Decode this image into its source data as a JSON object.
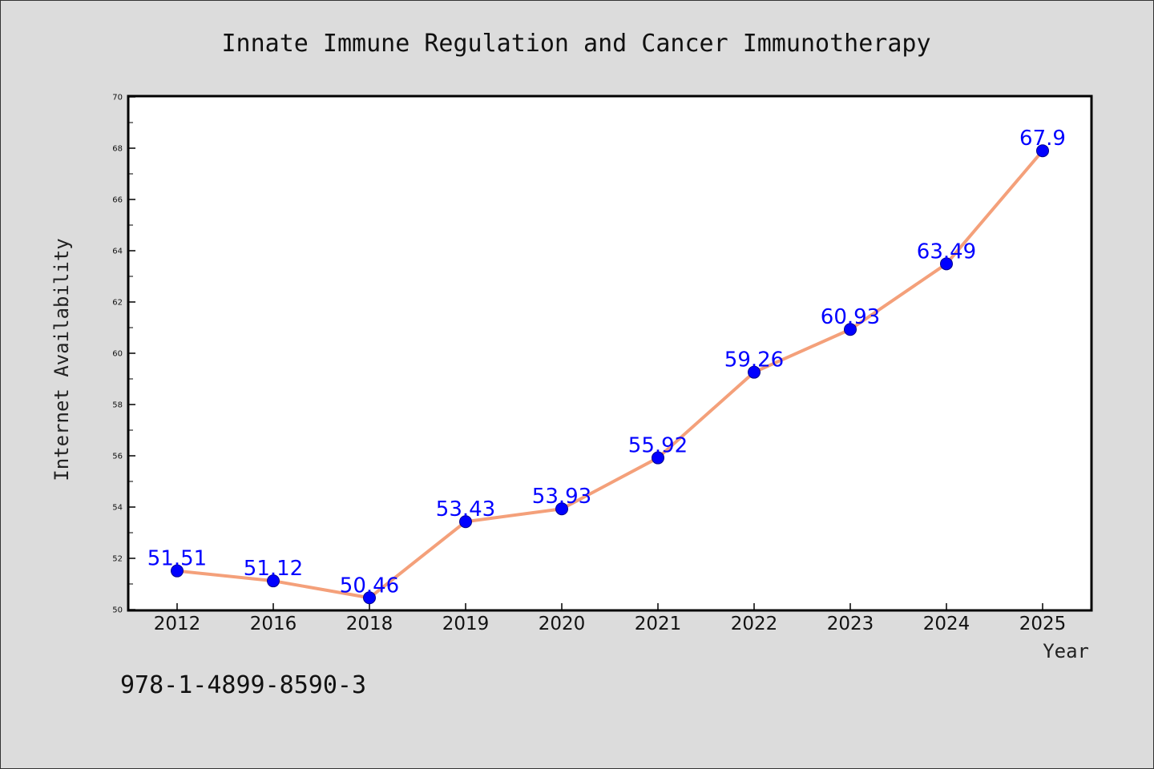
{
  "footer_text": "978-1-4899-8590-3",
  "chart_data": {
    "type": "line",
    "title": "Innate Immune Regulation and Cancer Immunotherapy",
    "xlabel": "Year",
    "ylabel": "Internet Availability",
    "categories": [
      "2012",
      "2016",
      "2018",
      "2019",
      "2020",
      "2021",
      "2022",
      "2023",
      "2024",
      "2025"
    ],
    "series": [
      {
        "values": [
          51.51,
          51.12,
          50.46,
          53.43,
          53.93,
          55.92,
          59.26,
          60.93,
          63.49,
          67.9
        ],
        "data_labels": [
          "51.51",
          "51.12",
          "50.46",
          "53.43",
          "53.93",
          "55.92",
          "59.26",
          "60.93",
          "63.49",
          "67.9"
        ],
        "line_color": "#f4a07a",
        "marker_color": "#0000ff"
      }
    ],
    "ylim": [
      50,
      70
    ],
    "y_ticks": [
      "50",
      "52",
      "54",
      "56",
      "58",
      "60",
      "62",
      "64",
      "66",
      "68",
      "70"
    ],
    "grid": false,
    "legend": "none",
    "background_color": "#dcdcdc",
    "plot_background_color": "#ffffff"
  }
}
